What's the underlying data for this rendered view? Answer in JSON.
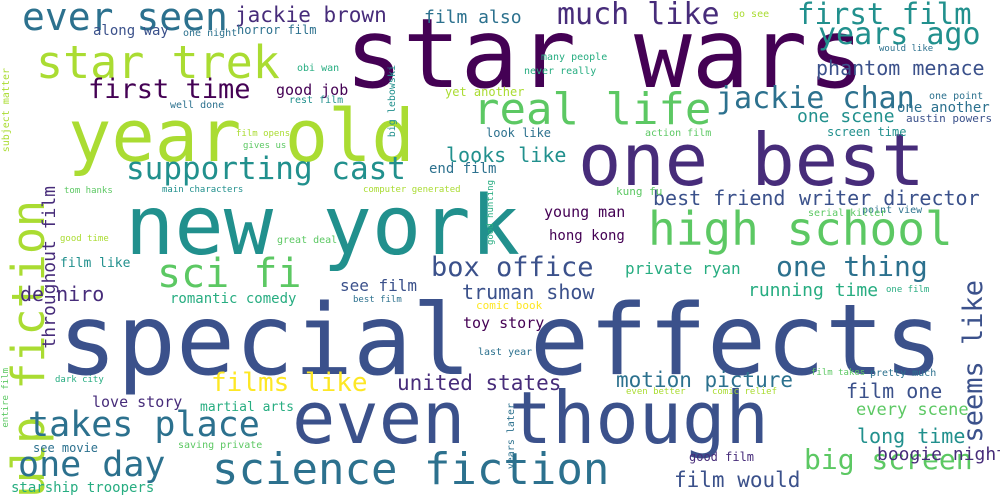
{
  "palette": {
    "dark_purple": "#440154",
    "purple": "#472c7a",
    "indigo": "#3b518b",
    "blue": "#2c718e",
    "teal": "#21908d",
    "green_teal": "#27ad81",
    "green": "#5cc863",
    "light_green": "#aadc32",
    "yellow": "#fde725"
  },
  "words": [
    {
      "text": "star wars",
      "color": "#440154"
    },
    {
      "text": "special effects",
      "color": "#3b518b"
    },
    {
      "text": "new york",
      "color": "#21908d"
    },
    {
      "text": "year old",
      "color": "#aadc32"
    },
    {
      "text": "one best",
      "color": "#472c7a"
    },
    {
      "text": "even though",
      "color": "#3b518b"
    },
    {
      "text": "science fiction",
      "color": "#2c718e"
    },
    {
      "text": "high school",
      "color": "#5cc863"
    },
    {
      "text": "pulp fiction",
      "color": "#aadc32"
    },
    {
      "text": "star trek",
      "color": "#aadc32"
    },
    {
      "text": "real life",
      "color": "#5cc863"
    },
    {
      "text": "ever seen",
      "color": "#2c718e"
    },
    {
      "text": "takes place",
      "color": "#2c718e"
    },
    {
      "text": "one day",
      "color": "#2c718e"
    },
    {
      "text": "supporting cast",
      "color": "#21908d"
    },
    {
      "text": "sci fi",
      "color": "#5cc863"
    },
    {
      "text": "much like",
      "color": "#472c7a"
    },
    {
      "text": "first film",
      "color": "#21908d"
    },
    {
      "text": "years ago",
      "color": "#21908d"
    },
    {
      "text": "jackie chan",
      "color": "#2c718e"
    },
    {
      "text": "first time",
      "color": "#440154"
    },
    {
      "text": "box office",
      "color": "#3b518b"
    },
    {
      "text": "big screen",
      "color": "#5cc863"
    },
    {
      "text": "one thing",
      "color": "#2c718e"
    },
    {
      "text": "seems like",
      "color": "#3b518b"
    },
    {
      "text": "films like",
      "color": "#fde725"
    },
    {
      "text": "united states",
      "color": "#472c7a"
    },
    {
      "text": "motion picture",
      "color": "#2c718e"
    },
    {
      "text": "film would",
      "color": "#3b518b"
    },
    {
      "text": "jackie brown",
      "color": "#472c7a"
    },
    {
      "text": "phantom menace",
      "color": "#3b518b"
    },
    {
      "text": "looks like",
      "color": "#21908d"
    },
    {
      "text": "truman show",
      "color": "#3b518b"
    },
    {
      "text": "writer director",
      "color": "#3b518b"
    },
    {
      "text": "best friend",
      "color": "#3b518b"
    },
    {
      "text": "running time",
      "color": "#27ad81"
    },
    {
      "text": "private ryan",
      "color": "#27ad81"
    },
    {
      "text": "long time",
      "color": "#21908d"
    },
    {
      "text": "film one",
      "color": "#3b518b"
    },
    {
      "text": "boogie nights",
      "color": "#472c7a"
    },
    {
      "text": "film also",
      "color": "#2c718e"
    },
    {
      "text": "de niro",
      "color": "#472c7a"
    },
    {
      "text": "throughout film",
      "color": "#472c7a"
    },
    {
      "text": "one scene",
      "color": "#21908d"
    },
    {
      "text": "every scene",
      "color": "#5cc863"
    },
    {
      "text": "one another",
      "color": "#2c718e"
    },
    {
      "text": "see film",
      "color": "#3b518b"
    },
    {
      "text": "end film",
      "color": "#2c718e"
    },
    {
      "text": "young man",
      "color": "#440154"
    },
    {
      "text": "hong kong",
      "color": "#440154"
    },
    {
      "text": "good job",
      "color": "#440154"
    },
    {
      "text": "toy story",
      "color": "#440154"
    },
    {
      "text": "love story",
      "color": "#472c7a"
    },
    {
      "text": "martial arts",
      "color": "#27ad81"
    },
    {
      "text": "romantic comedy",
      "color": "#27ad81"
    },
    {
      "text": "film like",
      "color": "#21908d"
    },
    {
      "text": "along way",
      "color": "#3b518b"
    },
    {
      "text": "horror film",
      "color": "#2c718e"
    },
    {
      "text": "look like",
      "color": "#2c718e"
    },
    {
      "text": "screen time",
      "color": "#21908d"
    },
    {
      "text": "see movie",
      "color": "#2c718e"
    },
    {
      "text": "starship troopers",
      "color": "#27ad81"
    },
    {
      "text": "good film",
      "color": "#472c7a"
    },
    {
      "text": "kung fu",
      "color": "#5cc863"
    },
    {
      "text": "yet another",
      "color": "#aadc32"
    },
    {
      "text": "comic book",
      "color": "#fde725"
    },
    {
      "text": "austin powers",
      "color": "#3b518b"
    },
    {
      "text": "one point",
      "color": "#2c718e"
    },
    {
      "text": "point view",
      "color": "#2c718e"
    },
    {
      "text": "serial killer",
      "color": "#5cc863"
    },
    {
      "text": "action film",
      "color": "#5cc863"
    },
    {
      "text": "many people",
      "color": "#27ad81"
    },
    {
      "text": "never really",
      "color": "#27ad81"
    },
    {
      "text": "go see",
      "color": "#aadc32"
    },
    {
      "text": "one night",
      "color": "#2c718e"
    },
    {
      "text": "obi wan",
      "color": "#27ad81"
    },
    {
      "text": "rest film",
      "color": "#21908d"
    },
    {
      "text": "well done",
      "color": "#2c718e"
    },
    {
      "text": "film opens",
      "color": "#aadc32"
    },
    {
      "text": "gives us",
      "color": "#5cc863"
    },
    {
      "text": "tom hanks",
      "color": "#5cc863"
    },
    {
      "text": "main characters",
      "color": "#21908d"
    },
    {
      "text": "computer generated",
      "color": "#aadc32"
    },
    {
      "text": "good time",
      "color": "#aadc32"
    },
    {
      "text": "great deal",
      "color": "#5cc863"
    },
    {
      "text": "best film",
      "color": "#2c718e"
    },
    {
      "text": "last year",
      "color": "#2c718e"
    },
    {
      "text": "dark city",
      "color": "#27ad81"
    },
    {
      "text": "saving private",
      "color": "#5cc863"
    },
    {
      "text": "film takes",
      "color": "#5cc863"
    },
    {
      "text": "pretty much",
      "color": "#2c718e"
    },
    {
      "text": "even better",
      "color": "#aadc32"
    },
    {
      "text": "comic relief",
      "color": "#aadc32"
    },
    {
      "text": "would like",
      "color": "#2c718e"
    },
    {
      "text": "one film",
      "color": "#27ad81"
    },
    {
      "text": "subject matter",
      "color": "#aadc32"
    },
    {
      "text": "entire film",
      "color": "#5cc863"
    },
    {
      "text": "big lebowski",
      "color": "#21908d"
    },
    {
      "text": "good hunting",
      "color": "#27ad81"
    },
    {
      "text": "years later",
      "color": "#2c718e"
    }
  ]
}
